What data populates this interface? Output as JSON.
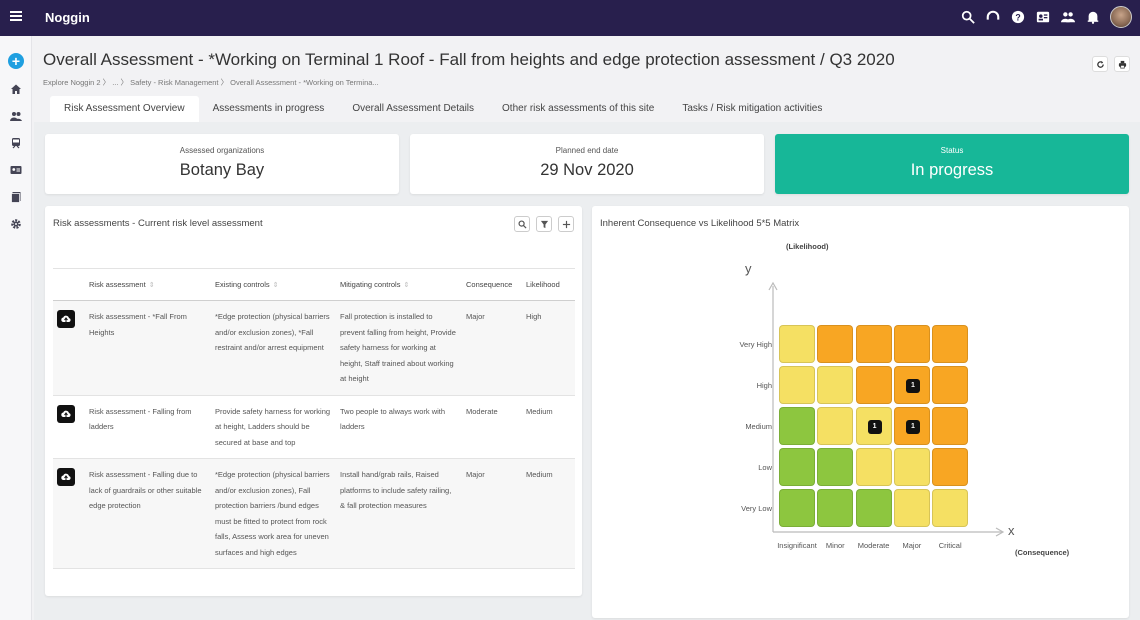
{
  "app": {
    "brand": "Noggin"
  },
  "topbar": {
    "icons": [
      "search-icon",
      "headset-icon",
      "help-icon",
      "id-card-icon",
      "people-icon",
      "bell-icon",
      "avatar"
    ]
  },
  "rail": {
    "icons": [
      "add-icon",
      "home-icon",
      "people-icon",
      "train-icon",
      "id-card-icon",
      "book-icon",
      "gear-icon"
    ]
  },
  "header": {
    "title": "Overall Assessment - *Working on Terminal 1 Roof - Fall from heights and edge protection assessment / Q3 2020",
    "breadcrumb": "Explore Noggin 2 〉 ... 〉 Safety - Risk Management 〉 Overall Assessment - *Working on Termina..."
  },
  "tabs": [
    {
      "label": "Risk Assessment Overview"
    },
    {
      "label": "Assessments in progress"
    },
    {
      "label": "Overall Assessment Details"
    },
    {
      "label": "Other risk assessments of this site"
    },
    {
      "label": "Tasks / Risk mitigation activities"
    }
  ],
  "summary": {
    "organizations": {
      "label": "Assessed organizations",
      "value": "Botany Bay"
    },
    "end_date": {
      "label": "Planned end date",
      "value": "29 Nov 2020"
    },
    "status": {
      "label": "Status",
      "value": "In progress",
      "color": "#17b798"
    }
  },
  "risk_panel": {
    "title": "Risk assessments - Current risk level assessment",
    "columns": [
      "Risk assessment",
      "Existing controls",
      "Mitigating controls",
      "Consequence",
      "Likelihood"
    ],
    "rows": [
      {
        "name": "Risk assessment - *Fall From Heights",
        "existing": "*Edge protection (physical barriers and/or exclusion zones), *Fall restraint and/or arrest equipment",
        "mitigating": "Fall protection is installed to prevent falling from height, Provide safety harness for working at height, Staff trained about working at height",
        "consequence": "Major",
        "likelihood": "High"
      },
      {
        "name": "Risk assessment - Falling from ladders",
        "existing": "Provide safety harness for working at height, Ladders should be secured at base and top",
        "mitigating": "Two people to always work with ladders",
        "consequence": "Moderate",
        "likelihood": "Medium"
      },
      {
        "name": "Risk assessment - Falling due to lack of guardrails or other suitable edge protection",
        "existing": "*Edge protection (physical barriers and/or exclusion zones), Fall protection barriers /bund edges must be fitted to protect from rock falls, Assess work area for uneven surfaces and high edges",
        "mitigating": "Install hand/grab rails, Raised platforms to include safety railing, & fall protection measures",
        "consequence": "Major",
        "likelihood": "Medium"
      }
    ]
  },
  "matrix": {
    "title": "Inherent Consequence vs Likelihood 5*5 Matrix",
    "y_axis_name": "(Likelihood)",
    "x_axis_name": "(Consequence)",
    "y_letter": "y",
    "x_letter": "x",
    "likelihood_levels": [
      "Very High",
      "High",
      "Medium",
      "Low",
      "Very Low"
    ],
    "consequence_levels": [
      "Insignificant",
      "Minor",
      "Moderate",
      "Major",
      "Critical"
    ],
    "colors": {
      "green": "#8dc63f",
      "yellow": "#f5e063",
      "orange": "#f8a623"
    },
    "grid": [
      [
        "yellow",
        "orange",
        "orange",
        "orange",
        "orange"
      ],
      [
        "yellow",
        "yellow",
        "orange",
        "orange",
        "orange"
      ],
      [
        "green",
        "yellow",
        "yellow",
        "orange",
        "orange"
      ],
      [
        "green",
        "green",
        "yellow",
        "yellow",
        "orange"
      ],
      [
        "green",
        "green",
        "green",
        "yellow",
        "yellow"
      ]
    ],
    "counts": [
      {
        "likelihood": "High",
        "consequence": "Major",
        "count": "1"
      },
      {
        "likelihood": "Medium",
        "consequence": "Moderate",
        "count": "1"
      },
      {
        "likelihood": "Medium",
        "consequence": "Major",
        "count": "1"
      }
    ]
  }
}
